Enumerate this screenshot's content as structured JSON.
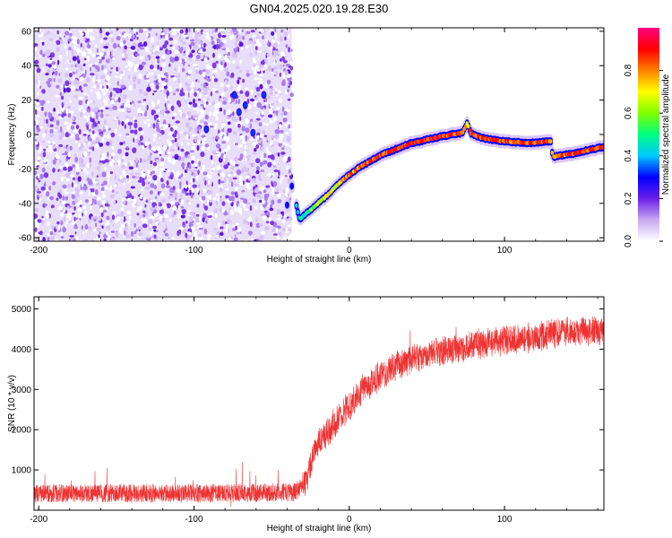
{
  "title": "GN04.2025.020.19.28.E30",
  "chart_data": [
    {
      "type": "heatmap",
      "xlabel": "Height of straight line (km)",
      "ylabel": "Frequency (Hz)",
      "xlim": [
        -203,
        164
      ],
      "ylim": [
        -62,
        62
      ],
      "x_ticks": [
        -200,
        -100,
        0,
        100
      ],
      "y_ticks": [
        -60,
        -40,
        -20,
        0,
        20,
        40,
        60
      ],
      "colorbar": {
        "label": "Normalized spectral amplitude",
        "range": [
          0,
          1
        ],
        "ticks": [
          0.0,
          0.2,
          0.4,
          0.6,
          0.8
        ],
        "colors": [
          "#ffffff",
          "#c8a8f0",
          "#6a1fe8",
          "#0000ff",
          "#00c8ff",
          "#00ff80",
          "#80ff00",
          "#ffff00",
          "#ff8000",
          "#ff0000",
          "#ff0080"
        ]
      },
      "noise_region": {
        "x": [
          -203,
          -37
        ],
        "y": [
          -62,
          62
        ]
      },
      "trace": [
        {
          "x": -40,
          "f": -41,
          "a": 0.25
        },
        {
          "x": -37,
          "f": -30,
          "a": 0.22
        },
        {
          "x": -32,
          "f": -49,
          "a": 0.45
        },
        {
          "x": -25,
          "f": -44,
          "a": 0.55
        },
        {
          "x": -15,
          "f": -36,
          "a": 0.65
        },
        {
          "x": -5,
          "f": -27,
          "a": 0.75
        },
        {
          "x": 5,
          "f": -20,
          "a": 0.8
        },
        {
          "x": 20,
          "f": -12,
          "a": 0.85
        },
        {
          "x": 40,
          "f": -5,
          "a": 0.9
        },
        {
          "x": 60,
          "f": -1,
          "a": 0.9
        },
        {
          "x": 73,
          "f": 1,
          "a": 0.85
        },
        {
          "x": 76,
          "f": 7,
          "a": 0.7
        },
        {
          "x": 78,
          "f": 1,
          "a": 0.85
        },
        {
          "x": 85,
          "f": -2,
          "a": 0.85
        },
        {
          "x": 100,
          "f": -4,
          "a": 0.85
        },
        {
          "x": 115,
          "f": -5,
          "a": 0.85
        },
        {
          "x": 130,
          "f": -4,
          "a": 0.85
        },
        {
          "x": 131,
          "f": -13,
          "a": 0.8
        },
        {
          "x": 145,
          "f": -11,
          "a": 0.85
        },
        {
          "x": 164,
          "f": -7,
          "a": 0.85
        }
      ],
      "spots": [
        {
          "x": -92,
          "f": 3
        },
        {
          "x": -74,
          "f": 23
        },
        {
          "x": -71,
          "f": 13
        },
        {
          "x": -67,
          "f": 17
        },
        {
          "x": -62,
          "f": 1
        },
        {
          "x": -55,
          "f": 23
        }
      ]
    },
    {
      "type": "line",
      "xlabel": "Height of straight line (km)",
      "ylabel": "SNR (10 * v/v)",
      "xlim": [
        -203,
        164
      ],
      "ylim": [
        0,
        5300
      ],
      "x_ticks": [
        -200,
        -100,
        0,
        100
      ],
      "y_ticks": [
        1000,
        2000,
        3000,
        4000,
        5000
      ],
      "color": "#ee3333",
      "noise_band": 500,
      "series": [
        {
          "x": [
            -203,
            -150,
            -100,
            -60,
            -35,
            -28,
            -22,
            -15,
            -10,
            -5,
            0,
            10,
            20,
            30,
            40,
            60,
            80,
            100,
            120,
            140,
            164
          ],
          "y": [
            420,
            420,
            420,
            430,
            450,
            700,
            1500,
            1900,
            2100,
            2350,
            2600,
            3050,
            3350,
            3600,
            3750,
            3950,
            4100,
            4200,
            4300,
            4450,
            4450
          ]
        }
      ]
    }
  ]
}
